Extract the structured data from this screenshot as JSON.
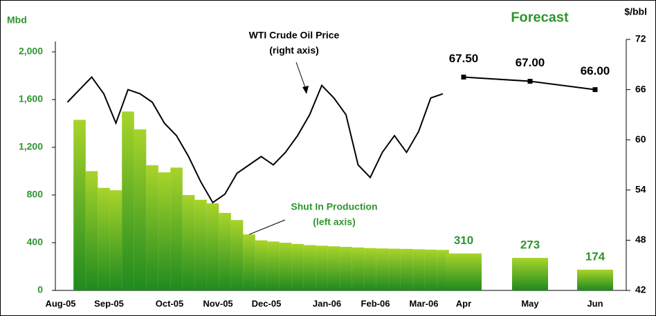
{
  "chart_data": {
    "type": "combo",
    "y_label": "Mbd",
    "y2_label": "$/bbl",
    "ylim": [
      0,
      2000
    ],
    "yticks": [
      0,
      400,
      800,
      {
        "value": 1200,
        "label": "1,200"
      },
      {
        "value": 1600,
        "label": "1,600"
      },
      {
        "value": 2000,
        "label": "2,000"
      }
    ],
    "y2lim": [
      42,
      72
    ],
    "y2ticks": [
      42,
      48,
      54,
      60,
      66,
      72
    ],
    "annotations": {
      "price": [
        "WTI Crude Oil Price",
        "(right axis)"
      ],
      "production": [
        "Shut In Production",
        "(left axis)"
      ],
      "forecast": "Forecast"
    },
    "production_color": "#8cc21e",
    "price_color": "#000000",
    "historical": {
      "categories": [
        "Aug-05",
        null,
        null,
        null,
        "Sep-05",
        null,
        null,
        null,
        null,
        "Oct-05",
        null,
        null,
        null,
        "Nov-05",
        null,
        null,
        null,
        "Dec-05",
        null,
        null,
        null,
        null,
        "Jan-06",
        null,
        null,
        null,
        "Feb-06",
        null,
        null,
        null,
        "Mar-06",
        null
      ],
      "series": [
        {
          "type": "bar",
          "values": [
            null,
            1430,
            1000,
            860,
            840,
            1500,
            1350,
            1050,
            990,
            1030,
            800,
            760,
            730,
            650,
            590,
            470,
            420,
            410,
            400,
            390,
            380,
            375,
            370,
            365,
            360,
            355,
            352,
            350,
            348,
            345,
            342,
            340
          ]
        },
        {
          "type": "line",
          "axis": "y2",
          "values": [
            64.5,
            66,
            67.5,
            65.5,
            62,
            66,
            65.5,
            64.5,
            62,
            60.5,
            58,
            55,
            52.5,
            53.5,
            56,
            57,
            58,
            57,
            58.5,
            60.5,
            63,
            66.5,
            65,
            63,
            57,
            55.5,
            58.5,
            60.5,
            58.5,
            61,
            65,
            65.5
          ]
        }
      ]
    },
    "forecast": {
      "categories": [
        "Apr",
        "May",
        "Jun"
      ],
      "series": [
        {
          "type": "bar",
          "values": [
            310,
            273,
            174
          ]
        },
        {
          "type": "line",
          "axis": "y2",
          "values": [
            67.5,
            67,
            66
          ],
          "value_labels": [
            "67.50",
            "67.00",
            "66.00"
          ]
        }
      ]
    }
  }
}
